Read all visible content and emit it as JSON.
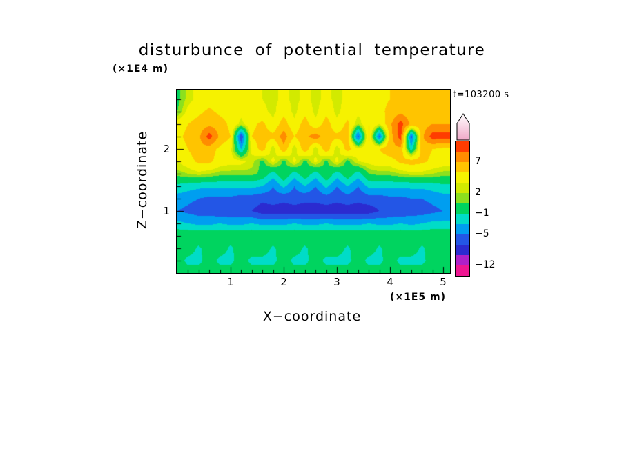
{
  "chart_data": {
    "type": "heatmap",
    "title": "disturbunce of potential temperature",
    "xlabel": "X−coordinate",
    "ylabel": "Z−coordinate",
    "x_unit": "(×1E5 m)",
    "y_unit": "(×1E4 m)",
    "time_label": "t=103200 s",
    "x_range": [
      0,
      5.13
    ],
    "y_range": [
      0,
      2.94
    ],
    "x_ticks": [
      1,
      2,
      3,
      4,
      5
    ],
    "y_ticks": [
      1,
      2
    ],
    "x_tick_labels": [
      "1",
      "2",
      "3",
      "4",
      "5"
    ],
    "y_tick_labels": [
      "1",
      "2"
    ],
    "legend_position": "right-colorbar",
    "grid_lines": false,
    "levels": [
      -12,
      -9,
      -7,
      -5,
      -3,
      -1,
      1,
      2,
      3,
      5,
      7,
      9,
      12
    ],
    "colors": [
      "#EE1692",
      "#AE20C8",
      "#2B2BD0",
      "#2356E6",
      "#009EF0",
      "#00DCC8",
      "#00D45F",
      "#8CE01E",
      "#D2EA00",
      "#F6F200",
      "#FFC400",
      "#FF8C00",
      "#FF3C00",
      "#F0A8C8"
    ],
    "colorbar_labels": [
      {
        "text": "7",
        "value": 7
      },
      {
        "text": "2",
        "value": 2
      },
      {
        "text": "−1",
        "value": -1
      },
      {
        "text": "−5",
        "value": -5
      },
      {
        "text": "−12",
        "value": -12
      }
    ],
    "grid": {
      "x0": 0,
      "dx": 0.2,
      "z0": 0,
      "dz": 0.2,
      "values": [
        [
          0.5,
          0.5,
          0.5,
          0.5,
          0.5,
          0.5,
          0.5,
          0.5,
          0.5,
          0.5,
          0.5,
          0.5,
          0.5,
          0.5,
          0.5,
          0.5,
          0.5,
          0.5,
          0.5,
          0.5,
          0.5,
          0.5,
          0.5,
          0.5,
          0.5,
          0.5
        ],
        [
          0.5,
          -1.8,
          -1.8,
          0.5,
          -1.8,
          -1.8,
          0.5,
          -1.8,
          -1.8,
          -1.8,
          0.5,
          -1.8,
          -1.8,
          0.5,
          -1.8,
          -1.8,
          -1.8,
          0.5,
          -1.8,
          -1.8,
          0.5,
          -1.8,
          -1.8,
          -1.8,
          0.5,
          0.5
        ],
        [
          0.5,
          0.5,
          -1.5,
          0.5,
          0.5,
          -1.5,
          0.5,
          0.5,
          0.5,
          -1.5,
          0.5,
          0.5,
          -1.5,
          0.5,
          0.5,
          0.5,
          -1.5,
          0.5,
          0.5,
          -1.5,
          0.5,
          0.5,
          0.5,
          -1.5,
          0.5,
          0.5
        ],
        [
          0.8,
          0.8,
          0.8,
          0.8,
          0.8,
          0.8,
          0.8,
          0.8,
          0.8,
          0.8,
          0.8,
          0.8,
          0.8,
          0.8,
          0.8,
          0.8,
          0.8,
          0.8,
          0.8,
          0.8,
          0.8,
          0.8,
          0.8,
          0.8,
          0.8,
          0.8
        ],
        [
          -2.5,
          -3,
          -3.5,
          -3.5,
          -3,
          -3.5,
          -3.5,
          -3,
          -3.5,
          -3.5,
          -3.5,
          -3,
          -3.5,
          -3.5,
          -3,
          -3.5,
          -3.5,
          -3.5,
          -3,
          -3.5,
          -3.5,
          -3,
          -3.5,
          -3,
          -2.5,
          -2.5
        ],
        [
          -5,
          -5.5,
          -6,
          -6,
          -6.5,
          -6.5,
          -6.5,
          -7,
          -8,
          -8,
          -8,
          -8,
          -8,
          -8,
          -8,
          -8,
          -8,
          -8,
          -8,
          -7,
          -6.5,
          -6.5,
          -6,
          -6,
          -5.5,
          -5
        ],
        [
          -4,
          -4.5,
          -5,
          -5.5,
          -5.5,
          -5.5,
          -6,
          -6,
          -6.5,
          -6,
          -6.5,
          -6,
          -6.5,
          -6.5,
          -6,
          -6.5,
          -6,
          -6.5,
          -6,
          -6,
          -5.5,
          -5.5,
          -5,
          -5,
          -4.5,
          -4
        ],
        [
          -1.5,
          -2,
          -2.5,
          -2.5,
          -2.5,
          -2.5,
          -2.5,
          -2.5,
          -3,
          -5,
          -2.5,
          -5,
          -3,
          -5,
          -2.5,
          -5,
          -3,
          -5,
          -2.5,
          -2.5,
          -2.5,
          -2.5,
          -2.5,
          -2.5,
          -2,
          -1.5
        ],
        [
          1.5,
          2,
          2.5,
          2,
          1.5,
          1.5,
          1.5,
          1.5,
          0.5,
          -2,
          1,
          -2,
          0.5,
          -2,
          1,
          -2,
          0.5,
          -2,
          1,
          1.5,
          1.5,
          2,
          2.5,
          2.5,
          2,
          1.5
        ],
        [
          3,
          4,
          5.5,
          5.5,
          4,
          3.5,
          3.5,
          2.5,
          0.5,
          3.5,
          0.5,
          3.5,
          0.5,
          3.5,
          0.5,
          3.5,
          0.5,
          3,
          3.5,
          4,
          4,
          5.5,
          6,
          5.5,
          4.5,
          4
        ],
        [
          4,
          5,
          6.5,
          6,
          4.5,
          3.5,
          -3,
          3.5,
          6,
          2,
          6.5,
          2,
          6.5,
          2,
          6.5,
          2,
          6,
          3.5,
          4.5,
          5,
          6.5,
          6.5,
          -2,
          6,
          5,
          4.5
        ],
        [
          4.5,
          5.5,
          6.5,
          10,
          6.5,
          5,
          -7,
          5,
          6,
          5.5,
          8,
          5,
          6.5,
          8,
          6,
          5.5,
          6,
          -6,
          5.5,
          -5.5,
          6,
          10,
          -6,
          6.5,
          10,
          10
        ],
        [
          4,
          5,
          6,
          6.5,
          6,
          4.5,
          2.5,
          4.5,
          5.5,
          3.5,
          6,
          3.5,
          6,
          3.5,
          6,
          3.5,
          5.5,
          2,
          5,
          3,
          6.5,
          10,
          6.5,
          6,
          7,
          7
        ],
        [
          1,
          3.5,
          4.5,
          5.5,
          4.5,
          4,
          3.5,
          4,
          3.5,
          2.5,
          4.5,
          2.5,
          4.5,
          2.5,
          4.5,
          2.5,
          4,
          3.5,
          4,
          4.5,
          5.5,
          6.5,
          5.5,
          5,
          6,
          6
        ],
        [
          0.5,
          2.5,
          3.5,
          4,
          3.5,
          3.5,
          3,
          3.5,
          3,
          2.5,
          3.5,
          2.5,
          3.5,
          2.5,
          3.5,
          2.5,
          3.5,
          3.5,
          4,
          4.5,
          5,
          5.5,
          5,
          5.5,
          6.5,
          6.5
        ]
      ]
    }
  }
}
